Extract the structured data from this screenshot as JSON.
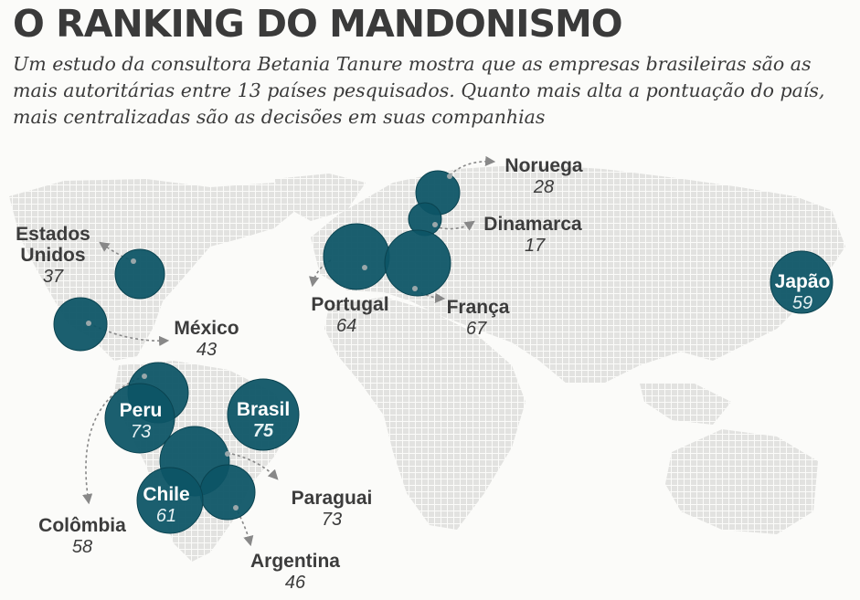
{
  "header": {
    "title": "O RANKING DO MANDONISMO",
    "subtitle": "Um estudo da consultora Betania Tanure mostra que as empresas brasileiras são as mais autoritárias entre 13 países pesquisados. Quanto mais alta a pontuação do país, mais centralizadas são as decisões em suas companhias"
  },
  "colors": {
    "bubble": "#0d5566",
    "map": "#e4e4e2",
    "text": "#3c3c3c"
  },
  "countries": [
    {
      "id": "estados-unidos",
      "name": "Estados\nUnidos",
      "score": "37"
    },
    {
      "id": "mexico",
      "name": "México",
      "score": "43"
    },
    {
      "id": "peru",
      "name": "Peru",
      "score": "73"
    },
    {
      "id": "colombia",
      "name": "Colômbia",
      "score": "58"
    },
    {
      "id": "brasil",
      "name": "Brasil",
      "score": "75"
    },
    {
      "id": "chile",
      "name": "Chile",
      "score": "61"
    },
    {
      "id": "paraguai",
      "name": "Paraguai",
      "score": "73"
    },
    {
      "id": "argentina",
      "name": "Argentina",
      "score": "46"
    },
    {
      "id": "portugal",
      "name": "Portugal",
      "score": "64"
    },
    {
      "id": "franca",
      "name": "França",
      "score": "67"
    },
    {
      "id": "noruega",
      "name": "Noruega",
      "score": "28"
    },
    {
      "id": "dinamarca",
      "name": "Dinamarca",
      "score": "17"
    },
    {
      "id": "japao",
      "name": "Japão",
      "score": "59"
    }
  ]
}
